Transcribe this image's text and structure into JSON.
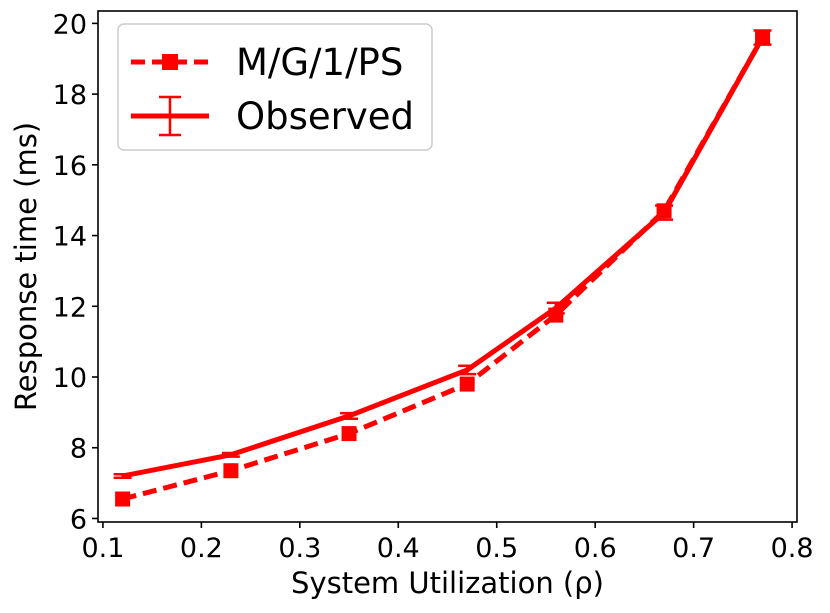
{
  "chart_data": {
    "type": "line",
    "xlabel": "System Utilization (ρ)",
    "ylabel": "Response time (ms)",
    "xlim": [
      0.095,
      0.805
    ],
    "ylim": [
      5.9,
      20.35
    ],
    "xticks": [
      0.1,
      0.2,
      0.3,
      0.4,
      0.5,
      0.6,
      0.7,
      0.8
    ],
    "yticks": [
      6,
      8,
      10,
      12,
      14,
      16,
      18,
      20
    ],
    "grid": false,
    "legend_position": "top-left",
    "series": [
      {
        "name": "M/G/1/PS",
        "style": "dashed",
        "marker": "square",
        "color": "#ff0000",
        "x": [
          0.12,
          0.23,
          0.35,
          0.47,
          0.56,
          0.67,
          0.77
        ],
        "y": [
          6.55,
          7.35,
          8.4,
          9.8,
          11.75,
          14.7,
          19.6
        ]
      },
      {
        "name": "Observed",
        "style": "solid",
        "marker": "errorbar",
        "color": "#ff0000",
        "x": [
          0.12,
          0.23,
          0.35,
          0.47,
          0.56,
          0.67,
          0.77
        ],
        "y": [
          7.2,
          7.8,
          8.9,
          10.2,
          11.95,
          14.65,
          19.6
        ],
        "error": [
          0.05,
          0.05,
          0.08,
          0.12,
          0.15,
          0.2,
          0.2
        ]
      }
    ]
  }
}
